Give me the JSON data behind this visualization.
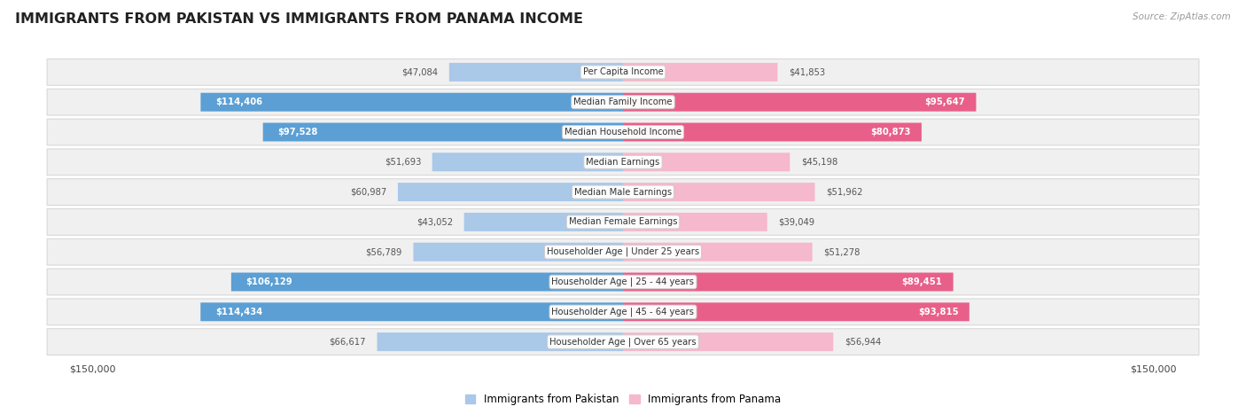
{
  "title": "IMMIGRANTS FROM PAKISTAN VS IMMIGRANTS FROM PANAMA INCOME",
  "source": "Source: ZipAtlas.com",
  "max_val": 150000,
  "categories": [
    "Per Capita Income",
    "Median Family Income",
    "Median Household Income",
    "Median Earnings",
    "Median Male Earnings",
    "Median Female Earnings",
    "Householder Age | Under 25 years",
    "Householder Age | 25 - 44 years",
    "Householder Age | 45 - 64 years",
    "Householder Age | Over 65 years"
  ],
  "pakistan_values": [
    47084,
    114406,
    97528,
    51693,
    60987,
    43052,
    56789,
    106129,
    114434,
    66617
  ],
  "panama_values": [
    41853,
    95647,
    80873,
    45198,
    51962,
    39049,
    51278,
    89451,
    93815,
    56944
  ],
  "pakistan_color_light": "#aac8e8",
  "pakistan_color_dark": "#5b9fd4",
  "panama_color_light": "#f5b8cc",
  "panama_color_dark": "#e8608a",
  "label_color_outside": "#555555",
  "bg_color": "#ffffff",
  "row_bg_color": "#f0f0f0",
  "row_border_color": "#d8d8d8",
  "title_color": "#222222",
  "source_color": "#999999",
  "legend_label_pakistan": "Immigrants from Pakistan",
  "legend_label_panama": "Immigrants from Panama",
  "axis_label_left": "$150,000",
  "axis_label_right": "$150,000",
  "inside_threshold": 75000
}
